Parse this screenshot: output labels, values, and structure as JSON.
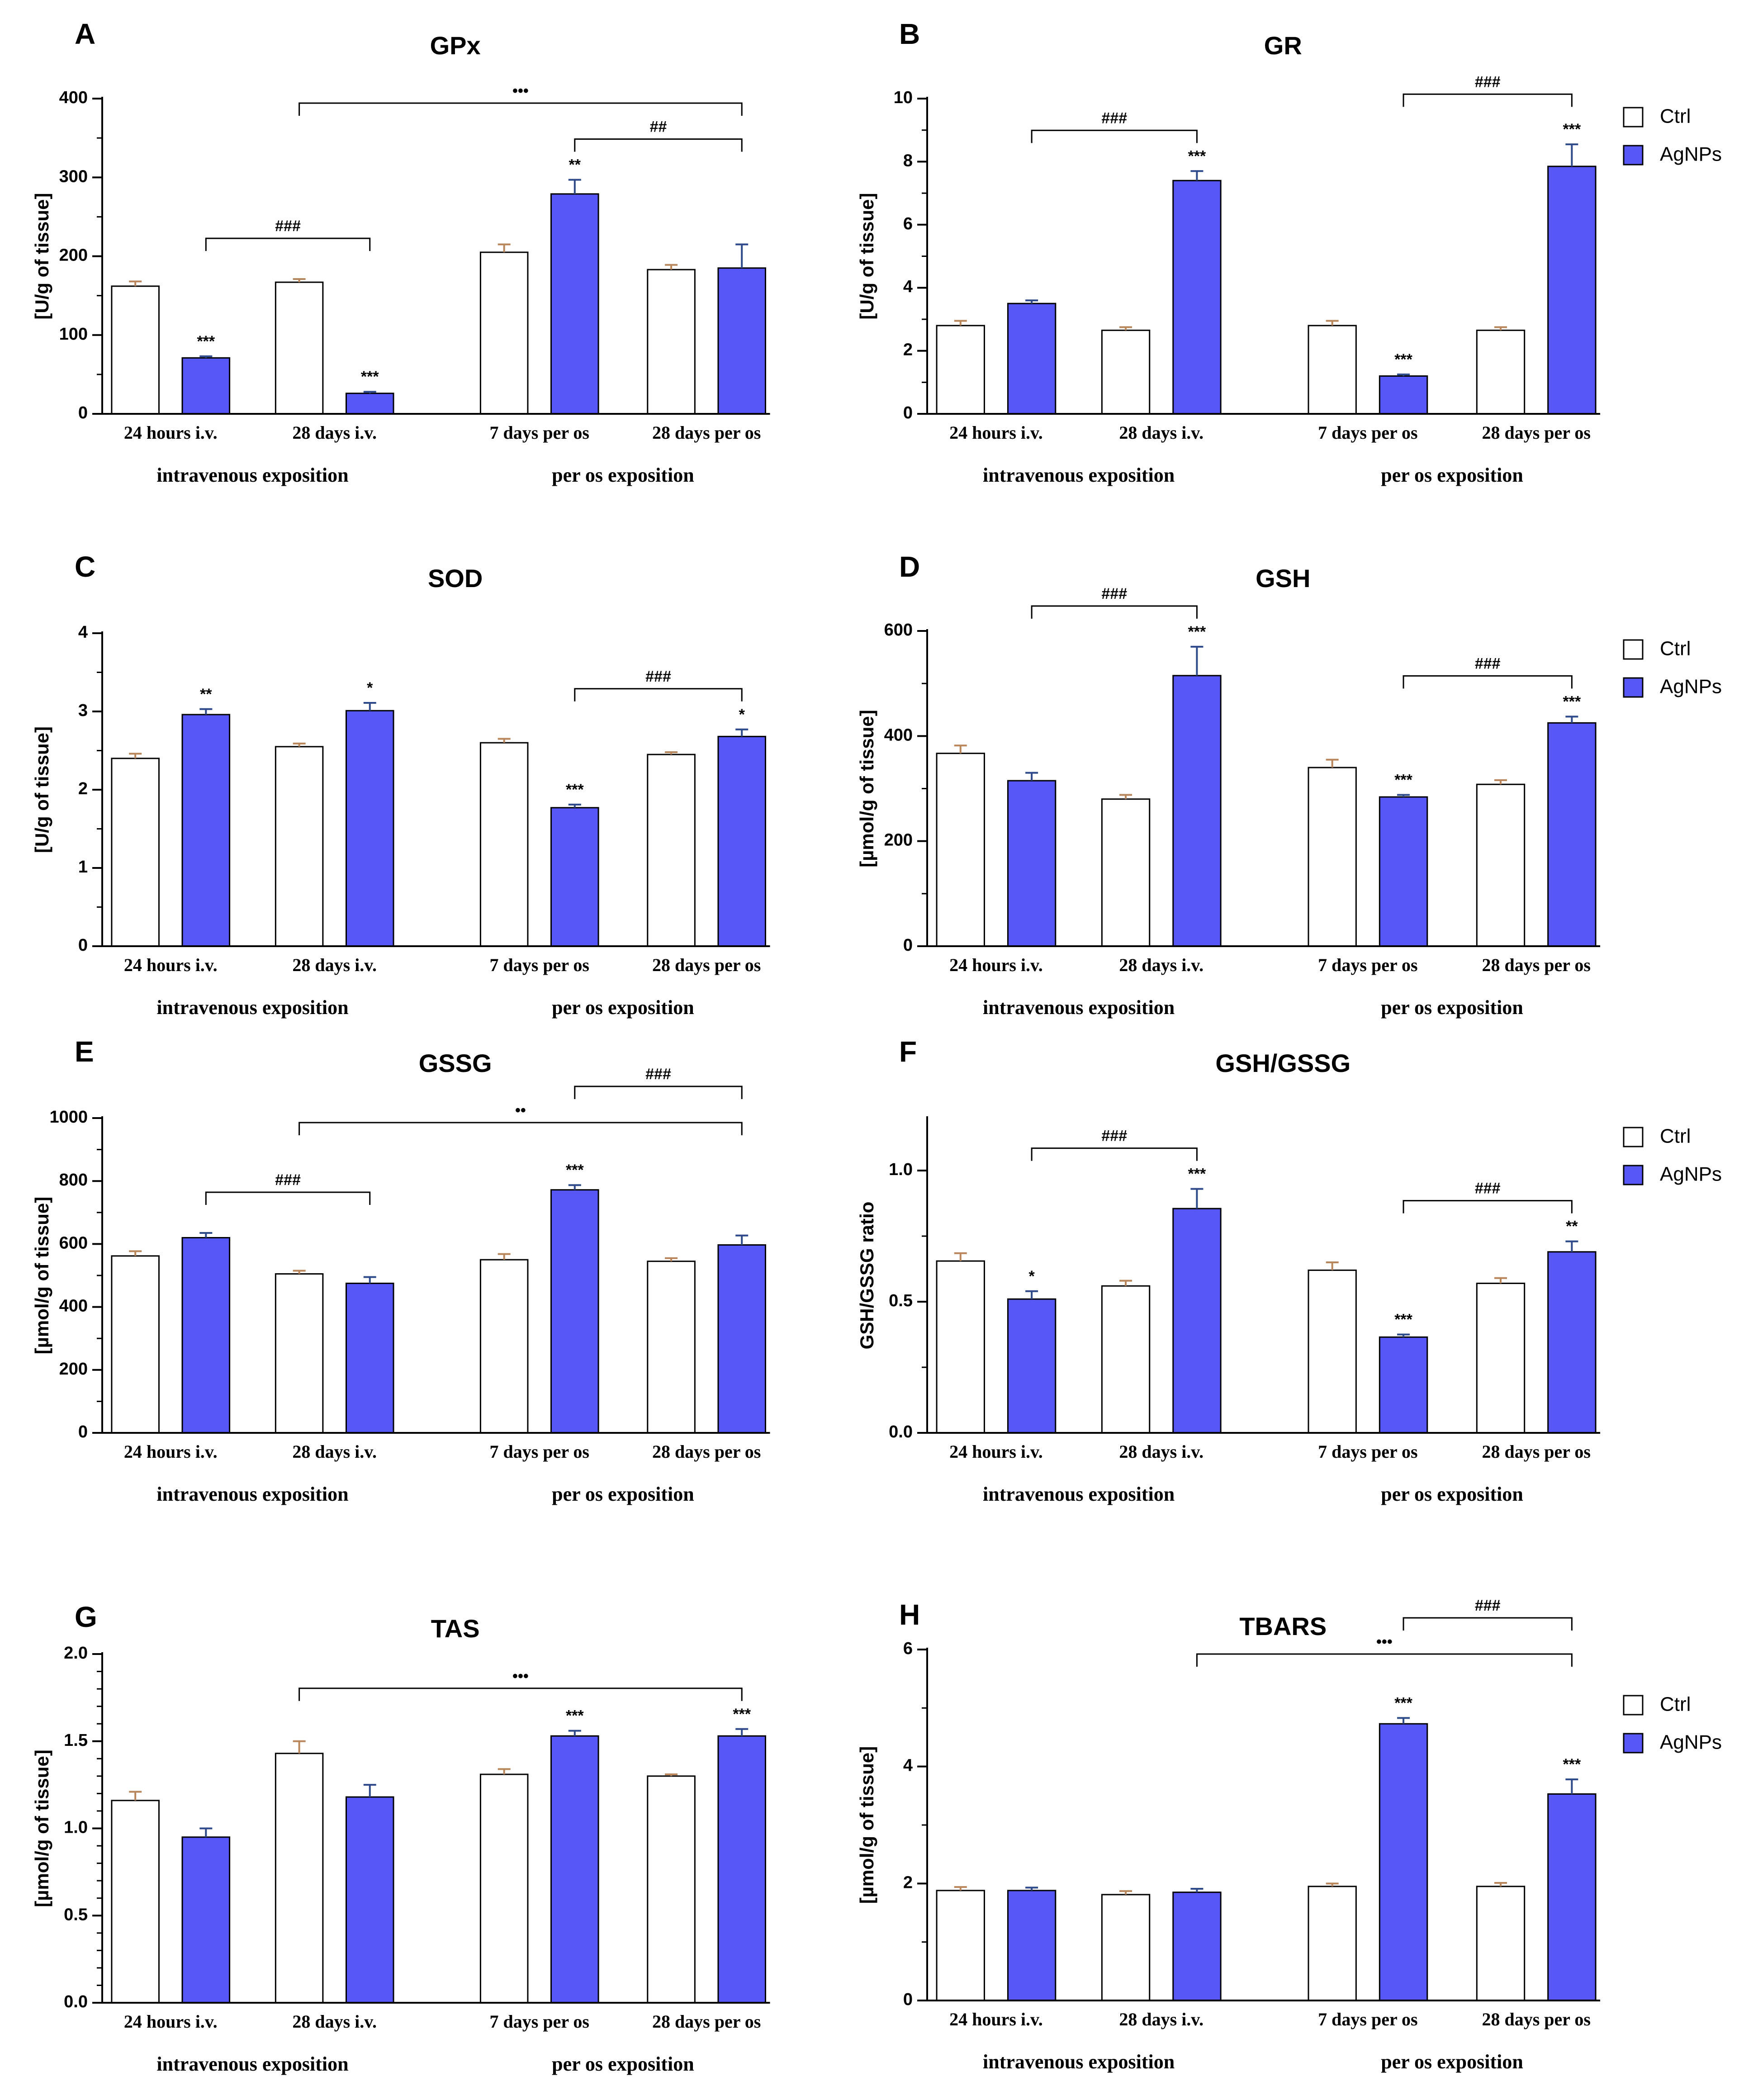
{
  "colors": {
    "ctrl_fill": "#ffffff",
    "agnp_fill": "#5757f5",
    "ctrl_err": "#b8865a",
    "agnp_err": "#2f4a8a",
    "axis": "#000000"
  },
  "legend": {
    "ctrl": "Ctrl",
    "agnp": "AgNPs"
  },
  "chart_data": [
    {
      "label": "A",
      "title": "GPx",
      "type": "bar",
      "ylabel": "[U/g of tissue]",
      "ylim": [
        0,
        400
      ],
      "yticks": [
        "0",
        "100",
        "200",
        "300",
        "400"
      ],
      "minor": 1,
      "categories": [
        "24 hours i.v.",
        "28 days i.v.",
        "7 days  per os",
        "28 days per os"
      ],
      "groups": [
        "intravenous exposition",
        "per os exposition"
      ],
      "series": [
        {
          "name": "Ctrl",
          "values": [
            162,
            167,
            205,
            183
          ],
          "errors": [
            6,
            4,
            10,
            6
          ]
        },
        {
          "name": "AgNPs",
          "values": [
            71,
            26,
            279,
            185
          ],
          "errors": [
            2,
            2,
            18,
            30
          ]
        }
      ],
      "stars": [
        "***",
        "***",
        "**",
        ""
      ],
      "brackets": [
        {
          "from": [
            1,
            0
          ],
          "to": [
            3,
            1
          ],
          "text": "•••"
        },
        {
          "from": [
            2,
            1
          ],
          "to": [
            3,
            1
          ],
          "text": "##"
        },
        {
          "from": [
            0,
            1
          ],
          "to": [
            1,
            1
          ],
          "text": "###"
        }
      ]
    },
    {
      "label": "B",
      "title": "GR",
      "type": "bar",
      "ylabel": "[U/g of tissue]",
      "ylim": [
        0,
        10
      ],
      "yticks": [
        "0",
        "2",
        "4",
        "6",
        "8",
        "10"
      ],
      "minor": 1,
      "categories": [
        "24 hours i.v.",
        "28 days i.v.",
        "7 days per os",
        "28 days per os"
      ],
      "groups": [
        "intravenous exposition",
        "per os exposition"
      ],
      "series": [
        {
          "name": "Ctrl",
          "values": [
            2.8,
            2.65,
            2.8,
            2.65
          ],
          "errors": [
            0.15,
            0.1,
            0.15,
            0.1
          ]
        },
        {
          "name": "AgNPs",
          "values": [
            3.5,
            7.4,
            1.2,
            7.85
          ],
          "errors": [
            0.1,
            0.3,
            0.05,
            0.7
          ]
        }
      ],
      "stars": [
        "",
        "***",
        "***",
        "***"
      ],
      "brackets": [
        {
          "from": [
            0,
            1
          ],
          "to": [
            1,
            1
          ],
          "text": "###"
        },
        {
          "from": [
            2,
            1
          ],
          "to": [
            3,
            1
          ],
          "text": "###"
        }
      ]
    },
    {
      "label": "C",
      "title": "SOD",
      "type": "bar",
      "ylabel": "[U/g of tissue]",
      "ylim": [
        0,
        4
      ],
      "yticks": [
        "0",
        "1",
        "2",
        "3",
        "4"
      ],
      "minor": 1,
      "categories": [
        "24 hours i.v.",
        "28 days i.v.",
        "7 days per os",
        "28 days per os"
      ],
      "groups": [
        "intravenous exposition",
        "per os exposition"
      ],
      "series": [
        {
          "name": "Ctrl",
          "values": [
            2.4,
            2.55,
            2.6,
            2.45
          ],
          "errors": [
            0.06,
            0.04,
            0.05,
            0.03
          ]
        },
        {
          "name": "AgNPs",
          "values": [
            2.96,
            3.01,
            1.77,
            2.68
          ],
          "errors": [
            0.07,
            0.1,
            0.04,
            0.09
          ]
        }
      ],
      "stars": [
        "**",
        "*",
        "***",
        "*"
      ],
      "brackets": [
        {
          "from": [
            2,
            1
          ],
          "to": [
            3,
            1
          ],
          "text": "###"
        }
      ]
    },
    {
      "label": "D",
      "title": "GSH",
      "type": "bar",
      "ylabel": "[µmol/g of tissue]",
      "ylim": [
        0,
        600
      ],
      "yticks": [
        "0",
        "200",
        "400",
        "600"
      ],
      "minor": 1,
      "categories": [
        "24 hours i.v.",
        "28 days i.v.",
        "7 days per os",
        "28 days per os"
      ],
      "groups": [
        "intravenous exposition",
        "per os exposition"
      ],
      "series": [
        {
          "name": "Ctrl",
          "values": [
            367,
            280,
            340,
            308
          ],
          "errors": [
            15,
            8,
            15,
            8
          ]
        },
        {
          "name": "AgNPs",
          "values": [
            315,
            515,
            284,
            425
          ],
          "errors": [
            15,
            55,
            4,
            12
          ]
        }
      ],
      "stars": [
        "",
        "***",
        "***",
        "***"
      ],
      "brackets": [
        {
          "from": [
            0,
            1
          ],
          "to": [
            1,
            1
          ],
          "text": "###"
        },
        {
          "from": [
            2,
            1
          ],
          "to": [
            3,
            1
          ],
          "text": "###"
        }
      ]
    },
    {
      "label": "E",
      "title": "GSSG",
      "type": "bar",
      "ylabel": "[µmol/g of tissue]",
      "ylim": [
        0,
        1000
      ],
      "yticks": [
        "0",
        "200",
        "400",
        "600",
        "800",
        "1000"
      ],
      "minor": 1,
      "categories": [
        "24 hours i.v.",
        "28 days i.v.",
        "7 days per os",
        "28 days per os"
      ],
      "groups": [
        "intravenous exposition",
        "per os exposition"
      ],
      "series": [
        {
          "name": "Ctrl",
          "values": [
            562,
            505,
            550,
            545
          ],
          "errors": [
            15,
            10,
            18,
            10
          ]
        },
        {
          "name": "AgNPs",
          "values": [
            620,
            475,
            772,
            597
          ],
          "errors": [
            15,
            20,
            15,
            30
          ]
        }
      ],
      "stars": [
        "",
        "",
        "***",
        ""
      ],
      "brackets": [
        {
          "from": [
            1,
            0
          ],
          "to": [
            3,
            1
          ],
          "text": "••"
        },
        {
          "from": [
            2,
            1
          ],
          "to": [
            3,
            1
          ],
          "text": "###"
        },
        {
          "from": [
            0,
            1
          ],
          "to": [
            1,
            1
          ],
          "text": "###"
        }
      ]
    },
    {
      "label": "F",
      "title": "GSH/GSSG",
      "type": "bar",
      "ylabel": "GSH/GSSG ratio",
      "ylim": [
        0,
        1.2
      ],
      "yticks": [
        "0.0",
        "0.5",
        "1.0"
      ],
      "tickstep": 0.5,
      "minor": 1,
      "categories": [
        "24 hours i.v.",
        "28 days i.v.",
        "7 days per os",
        "28 days per os"
      ],
      "groups": [
        "intravenous exposition",
        "per os exposition"
      ],
      "series": [
        {
          "name": "Ctrl",
          "values": [
            0.655,
            0.56,
            0.62,
            0.57
          ],
          "errors": [
            0.03,
            0.02,
            0.03,
            0.02
          ]
        },
        {
          "name": "AgNPs",
          "values": [
            0.51,
            0.855,
            0.365,
            0.69
          ],
          "errors": [
            0.03,
            0.075,
            0.01,
            0.04
          ]
        }
      ],
      "stars": [
        "*",
        "***",
        "***",
        "**"
      ],
      "brackets": [
        {
          "from": [
            0,
            1
          ],
          "to": [
            1,
            1
          ],
          "text": "###"
        },
        {
          "from": [
            2,
            1
          ],
          "to": [
            3,
            1
          ],
          "text": "###"
        }
      ]
    },
    {
      "label": "G",
      "title": "TAS",
      "type": "bar",
      "ylabel": "[µmol/g of tissue]",
      "ylim": [
        0,
        2
      ],
      "yticks": [
        "0.0",
        "0.5",
        "1.0",
        "1.5",
        "2.0"
      ],
      "minor": 4,
      "categories": [
        "24 hours i.v.",
        "28 days i.v.",
        "7 days per os",
        "28 days per os"
      ],
      "groups": [
        "intravenous exposition",
        "per os exposition"
      ],
      "series": [
        {
          "name": "Ctrl",
          "values": [
            1.16,
            1.43,
            1.31,
            1.3
          ],
          "errors": [
            0.05,
            0.07,
            0.03,
            0.01
          ]
        },
        {
          "name": "AgNPs",
          "values": [
            0.95,
            1.18,
            1.53,
            1.53
          ],
          "errors": [
            0.05,
            0.07,
            0.03,
            0.04
          ]
        }
      ],
      "stars": [
        "",
        "",
        "***",
        "***"
      ],
      "brackets": [
        {
          "from": [
            1,
            0
          ],
          "to": [
            3,
            1
          ],
          "text": "•••"
        }
      ]
    },
    {
      "label": "H",
      "title": "TBARS",
      "type": "bar",
      "ylabel": "[µmol/g of tissue]",
      "ylim": [
        0,
        6
      ],
      "yticks": [
        "0",
        "2",
        "4",
        "6"
      ],
      "minor": 1,
      "categories": [
        "24 hours i.v.",
        "28 days i.v.",
        "7 days per os",
        "28 days per os"
      ],
      "groups": [
        "intravenous exposition",
        "per os exposition"
      ],
      "series": [
        {
          "name": "Ctrl",
          "values": [
            1.88,
            1.81,
            1.95,
            1.95
          ],
          "errors": [
            0.06,
            0.06,
            0.05,
            0.06
          ]
        },
        {
          "name": "AgNPs",
          "values": [
            1.88,
            1.85,
            4.73,
            3.53
          ],
          "errors": [
            0.05,
            0.06,
            0.1,
            0.25
          ]
        }
      ],
      "stars": [
        "",
        "",
        "***",
        "***"
      ],
      "brackets": [
        {
          "from": [
            1,
            1
          ],
          "to": [
            3,
            1
          ],
          "text": "•••"
        },
        {
          "from": [
            2,
            1
          ],
          "to": [
            3,
            1
          ],
          "text": "###"
        }
      ]
    }
  ]
}
